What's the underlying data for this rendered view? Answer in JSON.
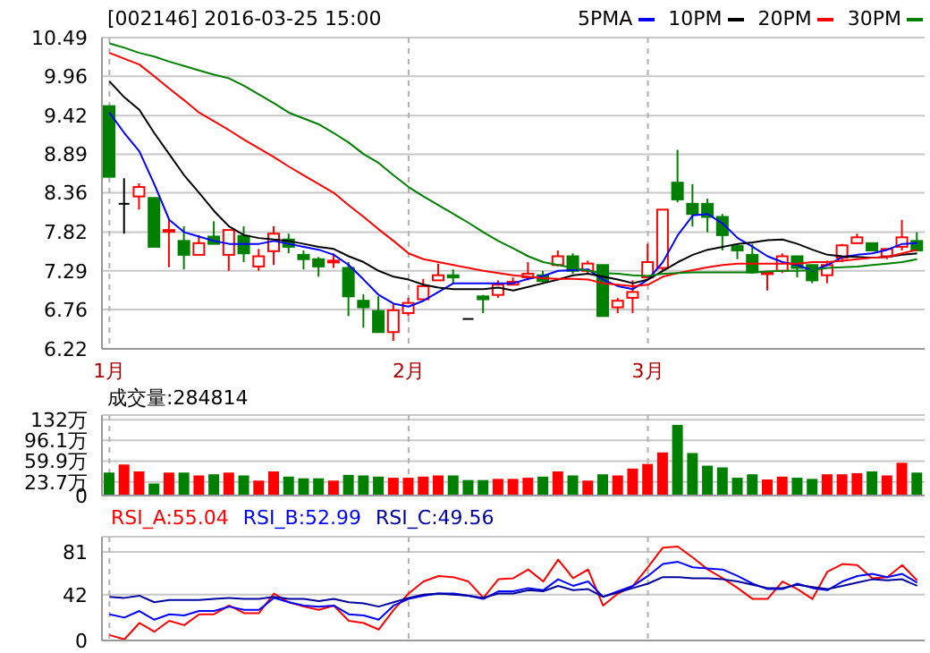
{
  "chart_data": [
    {
      "type": "candlestick",
      "title": "[002146] 2016-03-25 15:00",
      "categories": [
        "1月",
        null,
        null,
        null,
        null,
        null,
        null,
        null,
        null,
        null,
        null,
        null,
        null,
        null,
        null,
        null,
        null,
        null,
        null,
        null,
        "2月",
        null,
        null,
        null,
        null,
        null,
        null,
        null,
        null,
        null,
        null,
        null,
        null,
        null,
        null,
        null,
        "3月",
        null,
        null,
        null,
        null,
        null,
        null,
        null,
        null,
        null,
        null,
        null,
        null,
        null,
        null,
        null,
        null,
        null,
        null
      ],
      "ohlc": [
        [
          9.55,
          9.55,
          8.58,
          8.58
        ],
        [
          8.21,
          8.56,
          7.8,
          8.21
        ],
        [
          8.31,
          8.49,
          8.13,
          8.44
        ],
        [
          8.29,
          8.29,
          7.62,
          7.62
        ],
        [
          7.83,
          7.99,
          7.34,
          7.85
        ],
        [
          7.7,
          7.9,
          7.31,
          7.51
        ],
        [
          7.51,
          7.78,
          7.51,
          7.67
        ],
        [
          7.76,
          7.97,
          7.66,
          7.66
        ],
        [
          7.51,
          7.85,
          7.29,
          7.85
        ],
        [
          7.77,
          7.9,
          7.41,
          7.53
        ],
        [
          7.35,
          7.59,
          7.29,
          7.49
        ],
        [
          7.56,
          7.9,
          7.37,
          7.8
        ],
        [
          7.72,
          7.8,
          7.53,
          7.62
        ],
        [
          7.51,
          7.57,
          7.31,
          7.45
        ],
        [
          7.45,
          7.48,
          7.21,
          7.35
        ],
        [
          7.41,
          7.53,
          7.33,
          7.43
        ],
        [
          7.33,
          7.41,
          6.67,
          6.94
        ],
        [
          6.88,
          6.97,
          6.51,
          6.79
        ],
        [
          6.74,
          6.94,
          6.45,
          6.45
        ],
        [
          6.45,
          6.84,
          6.33,
          6.75
        ],
        [
          6.71,
          6.92,
          6.67,
          6.85
        ],
        [
          6.9,
          7.18,
          6.9,
          7.08
        ],
        [
          7.16,
          7.39,
          7.16,
          7.23
        ],
        [
          7.23,
          7.31,
          7.12,
          7.2
        ],
        [
          6.63,
          6.63,
          6.63,
          6.63
        ],
        [
          6.94,
          6.96,
          6.71,
          6.9
        ],
        [
          6.96,
          7.16,
          6.92,
          7.1
        ],
        [
          7.1,
          7.2,
          7.1,
          7.14
        ],
        [
          7.2,
          7.41,
          7.16,
          7.25
        ],
        [
          7.23,
          7.29,
          7.12,
          7.15
        ],
        [
          7.37,
          7.57,
          7.35,
          7.49
        ],
        [
          7.49,
          7.53,
          7.25,
          7.29
        ],
        [
          7.29,
          7.43,
          7.25,
          7.39
        ],
        [
          7.37,
          7.37,
          6.67,
          6.67
        ],
        [
          6.79,
          6.92,
          6.71,
          6.88
        ],
        [
          6.92,
          7.16,
          6.71,
          7.0
        ],
        [
          7.2,
          7.66,
          7.2,
          7.41
        ],
        [
          7.33,
          8.13,
          7.29,
          8.13
        ],
        [
          8.5,
          8.95,
          8.23,
          8.27
        ],
        [
          8.21,
          8.48,
          7.9,
          8.07
        ],
        [
          8.21,
          8.28,
          7.82,
          8.03
        ],
        [
          8.03,
          8.07,
          7.57,
          7.78
        ],
        [
          7.63,
          7.66,
          7.45,
          7.57
        ],
        [
          7.51,
          7.66,
          7.25,
          7.27
        ],
        [
          7.26,
          7.29,
          7.02,
          7.27
        ],
        [
          7.29,
          7.53,
          7.26,
          7.49
        ],
        [
          7.49,
          7.49,
          7.2,
          7.33
        ],
        [
          7.37,
          7.37,
          7.12,
          7.16
        ],
        [
          7.23,
          7.43,
          7.12,
          7.37
        ],
        [
          7.47,
          7.66,
          7.41,
          7.64
        ],
        [
          7.67,
          7.8,
          7.66,
          7.75
        ],
        [
          7.67,
          7.67,
          7.57,
          7.57
        ],
        [
          7.49,
          7.59,
          7.45,
          7.59
        ],
        [
          7.62,
          7.99,
          7.57,
          7.75
        ],
        [
          7.7,
          7.82,
          7.57,
          7.57
        ]
      ],
      "colors": [
        "#008000",
        "#000000",
        "#ff0000",
        "#008000",
        "#ff0000",
        "#008000",
        "#ff0000",
        "#008000",
        "#ff0000",
        "#008000",
        "#ff0000",
        "#ff0000",
        "#008000",
        "#008000",
        "#008000",
        "#ff0000",
        "#008000",
        "#008000",
        "#008000",
        "#ff0000",
        "#ff0000",
        "#ff0000",
        "#ff0000",
        "#008000",
        "#000000",
        "#008000",
        "#ff0000",
        "#ff0000",
        "#ff0000",
        "#008000",
        "#ff0000",
        "#008000",
        "#ff0000",
        "#008000",
        "#ff0000",
        "#ff0000",
        "#ff0000",
        "#ff0000",
        "#008000",
        "#008000",
        "#008000",
        "#008000",
        "#008000",
        "#008000",
        "#ff0000",
        "#ff0000",
        "#008000",
        "#008000",
        "#ff0000",
        "#ff0000",
        "#ff0000",
        "#008000",
        "#ff0000",
        "#ff0000",
        "#008000"
      ],
      "series": [
        {
          "name": "5PMA",
          "type": "line",
          "color": "#0000ff",
          "values": [
            9.46,
            9.18,
            8.93,
            8.48,
            7.99,
            7.82,
            7.76,
            7.7,
            7.66,
            7.66,
            7.66,
            7.7,
            7.66,
            7.62,
            7.58,
            7.51,
            7.37,
            7.17,
            6.96,
            6.84,
            6.8,
            6.88,
            7.0,
            7.12,
            7.12,
            7.12,
            7.12,
            7.12,
            7.18,
            7.22,
            7.29,
            7.3,
            7.31,
            7.17,
            7.08,
            7.04,
            7.17,
            7.41,
            7.78,
            8.05,
            8.07,
            7.94,
            7.74,
            7.62,
            7.49,
            7.41,
            7.37,
            7.29,
            7.37,
            7.48,
            7.51,
            7.53,
            7.58,
            7.66,
            7.67
          ]
        },
        {
          "name": "10PM",
          "type": "line",
          "color": "#000000",
          "values": [
            9.89,
            9.67,
            9.5,
            9.18,
            8.89,
            8.6,
            8.36,
            8.11,
            7.9,
            7.78,
            7.74,
            7.72,
            7.7,
            7.66,
            7.62,
            7.59,
            7.49,
            7.41,
            7.29,
            7.21,
            7.17,
            7.1,
            7.06,
            7.04,
            7.04,
            7.04,
            7.06,
            7.02,
            7.07,
            7.12,
            7.17,
            7.23,
            7.25,
            7.21,
            7.17,
            7.12,
            7.17,
            7.29,
            7.41,
            7.51,
            7.58,
            7.62,
            7.66,
            7.68,
            7.71,
            7.72,
            7.66,
            7.58,
            7.51,
            7.49,
            7.48,
            7.47,
            7.48,
            7.51,
            7.53
          ]
        },
        {
          "name": "20PM",
          "type": "line",
          "color": "#ff0000",
          "values": [
            10.28,
            10.2,
            10.12,
            9.96,
            9.79,
            9.63,
            9.46,
            9.34,
            9.22,
            9.09,
            8.97,
            8.85,
            8.72,
            8.6,
            8.48,
            8.36,
            8.19,
            8.03,
            7.86,
            7.7,
            7.53,
            7.45,
            7.41,
            7.37,
            7.33,
            7.29,
            7.26,
            7.23,
            7.21,
            7.19,
            7.18,
            7.18,
            7.17,
            7.12,
            7.1,
            7.08,
            7.1,
            7.21,
            7.26,
            7.3,
            7.34,
            7.37,
            7.39,
            7.39,
            7.39,
            7.39,
            7.39,
            7.41,
            7.41,
            7.43,
            7.45,
            7.47,
            7.48,
            7.53,
            7.58
          ]
        },
        {
          "name": "30PM",
          "type": "line",
          "color": "#008000",
          "values": [
            10.41,
            10.35,
            10.28,
            10.23,
            10.16,
            10.1,
            10.04,
            9.98,
            9.93,
            9.83,
            9.71,
            9.59,
            9.46,
            9.38,
            9.3,
            9.18,
            9.05,
            8.89,
            8.77,
            8.6,
            8.44,
            8.31,
            8.19,
            8.07,
            7.95,
            7.82,
            7.7,
            7.6,
            7.49,
            7.41,
            7.37,
            7.33,
            7.29,
            7.26,
            7.25,
            7.23,
            7.22,
            7.25,
            7.26,
            7.27,
            7.27,
            7.27,
            7.27,
            7.27,
            7.28,
            7.29,
            7.29,
            7.3,
            7.33,
            7.34,
            7.35,
            7.37,
            7.39,
            7.41,
            7.45
          ]
        }
      ],
      "ylim": [
        6.22,
        10.49
      ],
      "yticks": [
        6.22,
        6.76,
        7.29,
        7.82,
        8.36,
        8.89,
        9.42,
        9.96,
        10.49
      ],
      "grid": true,
      "legend": "top right",
      "marker": "none"
    },
    {
      "type": "bar",
      "title": "成交量:284814",
      "categories": [
        null,
        null,
        null,
        null,
        null,
        null,
        null,
        null,
        null,
        null,
        null,
        null,
        null,
        null,
        null,
        null,
        null,
        null,
        null,
        null,
        null,
        null,
        null,
        null,
        null,
        null,
        null,
        null,
        null,
        null,
        null,
        null,
        null,
        null,
        null,
        null,
        null,
        null,
        null,
        null,
        null,
        null,
        null,
        null,
        null,
        null,
        null,
        null,
        null,
        null,
        null,
        null,
        null,
        null,
        null
      ],
      "values": [
        40,
        54,
        42,
        21,
        40,
        40,
        35,
        37,
        40,
        35,
        26,
        42,
        33,
        30,
        30,
        26,
        36,
        35,
        33,
        31,
        31,
        33,
        35,
        35,
        27,
        27,
        29,
        29,
        31,
        33,
        42,
        35,
        26,
        37,
        35,
        47,
        55,
        75,
        123,
        74,
        52,
        49,
        31,
        37,
        28,
        33,
        31,
        29,
        37,
        37,
        39,
        42,
        35,
        57,
        40
      ],
      "colors": [
        "#008000",
        "#ff0000",
        "#ff0000",
        "#008000",
        "#ff0000",
        "#008000",
        "#ff0000",
        "#008000",
        "#ff0000",
        "#008000",
        "#ff0000",
        "#ff0000",
        "#008000",
        "#008000",
        "#008000",
        "#ff0000",
        "#008000",
        "#008000",
        "#008000",
        "#ff0000",
        "#ff0000",
        "#ff0000",
        "#ff0000",
        "#008000",
        "#008000",
        "#008000",
        "#ff0000",
        "#ff0000",
        "#ff0000",
        "#008000",
        "#ff0000",
        "#008000",
        "#ff0000",
        "#008000",
        "#ff0000",
        "#ff0000",
        "#ff0000",
        "#ff0000",
        "#008000",
        "#008000",
        "#008000",
        "#008000",
        "#008000",
        "#008000",
        "#ff0000",
        "#ff0000",
        "#008000",
        "#008000",
        "#ff0000",
        "#ff0000",
        "#ff0000",
        "#008000",
        "#ff0000",
        "#ff0000",
        "#008000"
      ],
      "ylim": [
        0,
        140
      ],
      "yticks": [
        0,
        {
          "value": 23.7,
          "label": "23.7万"
        },
        {
          "value": 59.9,
          "label": "59.9万"
        },
        {
          "value": 96.1,
          "label": "96.1万"
        },
        {
          "value": 132,
          "label": "132万"
        }
      ],
      "grid": true,
      "tick_labels": "y"
    },
    {
      "type": "line",
      "categories": [
        null,
        null,
        null,
        null,
        null,
        null,
        null,
        null,
        null,
        null,
        null,
        null,
        null,
        null,
        null,
        null,
        null,
        null,
        null,
        null,
        null,
        null,
        null,
        null,
        null,
        null,
        null,
        null,
        null,
        null,
        null,
        null,
        null,
        null,
        null,
        null,
        null,
        null,
        null,
        null,
        null,
        null,
        null,
        null,
        null,
        null,
        null,
        null,
        null,
        null,
        null,
        null,
        null,
        null,
        null
      ],
      "series": [
        {
          "name": "RSI_A:55.04",
          "color": "#ff0000",
          "values": [
            5,
            1,
            16,
            8,
            18,
            14,
            24,
            24,
            32,
            25,
            25,
            43,
            35,
            31,
            28,
            32,
            18,
            16,
            10,
            28,
            43,
            54,
            59,
            58,
            54,
            39,
            56,
            57,
            65,
            54,
            74,
            57,
            65,
            32,
            43,
            50,
            67,
            85,
            86,
            76,
            65,
            57,
            48,
            38,
            38,
            54,
            47,
            38,
            63,
            70,
            69,
            57,
            58,
            69,
            55
          ]
        },
        {
          "name": "RSI_B:52.99",
          "color": "#0000ff",
          "values": [
            24,
            21,
            27,
            19,
            24,
            23,
            27,
            27,
            31,
            28,
            28,
            39,
            35,
            32,
            31,
            32,
            24,
            23,
            19,
            32,
            38,
            41,
            43,
            43,
            41,
            38,
            45,
            45,
            48,
            46,
            56,
            50,
            54,
            40,
            45,
            50,
            59,
            70,
            72,
            67,
            66,
            65,
            59,
            52,
            47,
            47,
            52,
            48,
            46,
            54,
            59,
            61,
            58,
            61,
            53
          ]
        },
        {
          "name": "RSI_C:49.56",
          "color": "#0000a0",
          "values": [
            40,
            39,
            41,
            35,
            37,
            37,
            37,
            38,
            39,
            38,
            38,
            40,
            38,
            38,
            36,
            38,
            35,
            34,
            31,
            35,
            39,
            42,
            43,
            42,
            41,
            39,
            43,
            43,
            46,
            45,
            50,
            46,
            47,
            40,
            44,
            48,
            52,
            58,
            58,
            57,
            57,
            56,
            54,
            51,
            48,
            48,
            51,
            49,
            47,
            50,
            53,
            56,
            55,
            56,
            50
          ]
        }
      ],
      "ylim": [
        0,
        95
      ],
      "yticks": [
        0,
        42,
        81
      ],
      "grid": true,
      "legend": "top left",
      "marker": "none",
      "tick_labels": "y"
    }
  ]
}
